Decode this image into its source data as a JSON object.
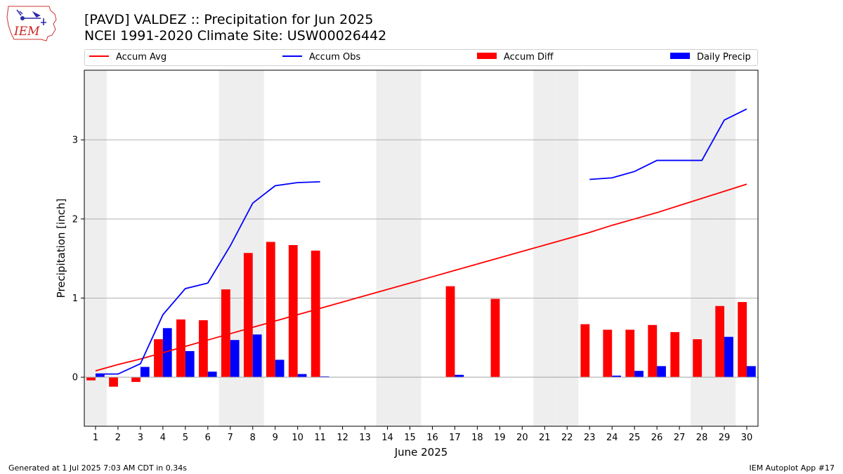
{
  "header": {
    "logo_text": "IEM",
    "title_line1": "[PAVD] VALDEZ :: Precipitation for Jun 2025",
    "title_line2": "NCEI 1991-2020 Climate Site: USW00026442"
  },
  "legend": {
    "accum_avg": "Accum Avg",
    "accum_obs": "Accum Obs",
    "accum_diff": "Accum Diff",
    "daily_precip": "Daily Precip",
    "placement": "top (above plot, spanning width)"
  },
  "footer": {
    "left": "Generated at 1 Jul 2025 7:03 AM CDT in 0.34s",
    "right": "IEM Autoplot App #17"
  },
  "colors": {
    "accum_avg": "#ff0000",
    "accum_obs": "#0000ff",
    "accum_diff": "#ff0000",
    "daily_precip": "#0000ff",
    "weekend_shade": "#eeeeee",
    "grid": "#b0b0b0"
  },
  "chart_data": {
    "type": "bar",
    "xlabel": "June 2025",
    "ylabel": "Precipitation [inch]",
    "x": [
      1,
      2,
      3,
      4,
      5,
      6,
      7,
      8,
      9,
      10,
      11,
      12,
      13,
      14,
      15,
      16,
      17,
      18,
      19,
      20,
      21,
      22,
      23,
      24,
      25,
      26,
      27,
      28,
      29,
      30
    ],
    "xlim": [
      0.5,
      30.5
    ],
    "ylim": [
      -0.62,
      3.88
    ],
    "yticks": [
      0,
      1,
      2,
      3
    ],
    "grid": "horizontal",
    "shaded_days": [
      1,
      7,
      8,
      14,
      15,
      21,
      22,
      28,
      29
    ],
    "series": [
      {
        "name": "Accum Avg",
        "kind": "line",
        "values": [
          0.08,
          0.16,
          0.23,
          0.31,
          0.39,
          0.47,
          0.55,
          0.63,
          0.71,
          0.79,
          0.87,
          0.95,
          1.03,
          1.11,
          1.19,
          1.27,
          1.35,
          1.43,
          1.51,
          1.59,
          1.67,
          1.75,
          1.83,
          1.92,
          2.0,
          2.08,
          2.17,
          2.26,
          2.35,
          2.44
        ]
      },
      {
        "name": "Accum Obs",
        "kind": "line",
        "values": [
          0.04,
          0.04,
          0.17,
          0.79,
          1.12,
          1.19,
          1.66,
          2.2,
          2.42,
          2.46,
          2.47,
          null,
          null,
          null,
          null,
          null,
          null,
          null,
          null,
          null,
          null,
          null,
          2.5,
          2.52,
          2.6,
          2.74,
          2.74,
          2.74,
          3.25,
          3.39
        ]
      },
      {
        "name": "Accum Diff",
        "kind": "bar",
        "values": [
          -0.04,
          -0.12,
          -0.06,
          0.48,
          0.73,
          0.72,
          1.11,
          1.57,
          1.71,
          1.67,
          1.6,
          null,
          null,
          null,
          null,
          null,
          1.15,
          null,
          0.99,
          null,
          null,
          null,
          0.67,
          0.6,
          0.6,
          0.66,
          0.57,
          0.48,
          0.9,
          0.95
        ]
      },
      {
        "name": "Daily Precip",
        "kind": "bar",
        "values": [
          0.04,
          0.0,
          0.13,
          0.62,
          0.33,
          0.07,
          0.47,
          0.54,
          0.22,
          0.04,
          0.01,
          null,
          null,
          null,
          null,
          null,
          0.03,
          null,
          0.0,
          null,
          null,
          null,
          0.0,
          0.02,
          0.08,
          0.14,
          0.0,
          0.0,
          0.51,
          0.14
        ]
      }
    ]
  }
}
